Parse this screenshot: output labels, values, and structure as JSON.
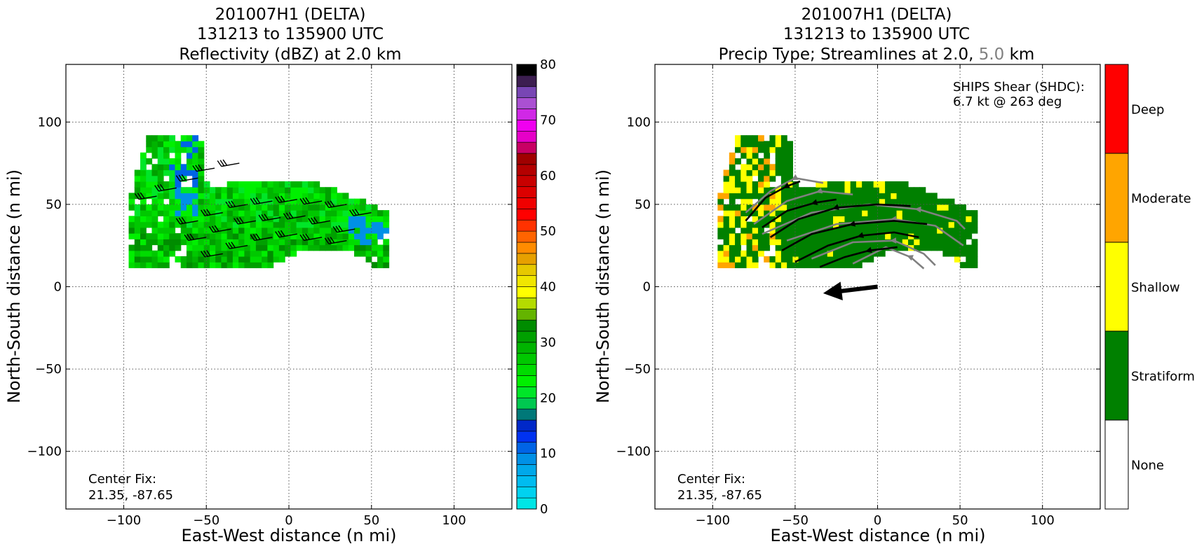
{
  "chart_data": [
    {
      "type": "heatmap",
      "title_lines": [
        "201007H1 (DELTA)",
        "131213 to 135900 UTC",
        "Reflectivity (dBZ) at 2.0 km"
      ],
      "xlabel": "East-West distance (n mi)",
      "ylabel": "North-South distance (n mi)",
      "xlim": [
        -135,
        135
      ],
      "ylim": [
        -135,
        135
      ],
      "xticks": [
        -100,
        -50,
        0,
        50,
        100
      ],
      "yticks": [
        -100,
        -50,
        0,
        50,
        100
      ],
      "xtick_labels": [
        "−100",
        "−50",
        "0",
        "50",
        "100"
      ],
      "ytick_labels": [
        "−100",
        "−50",
        "0",
        "50",
        "100"
      ],
      "grid": "dotted",
      "annotation_lines": [
        "Center Fix:",
        "21.35, -87.65"
      ],
      "colorbar": {
        "range": [
          0,
          80
        ],
        "step": 2.5,
        "ticks": [
          0,
          10,
          20,
          30,
          40,
          50,
          60,
          70,
          80
        ],
        "tick_labels": [
          "0",
          "10",
          "20",
          "30",
          "40",
          "50",
          "60",
          "70",
          "80"
        ],
        "colors": [
          "#00e6e6",
          "#00d2f0",
          "#00bcf0",
          "#00a8ea",
          "#0090e6",
          "#0064e6",
          "#0032f0",
          "#0028c8",
          "#007878",
          "#00c850",
          "#00e628",
          "#00f000",
          "#00dc00",
          "#00c800",
          "#00b400",
          "#00a000",
          "#008c00",
          "#64b400",
          "#b4dc00",
          "#ffff00",
          "#f0e600",
          "#e6c800",
          "#e6a000",
          "#ff8c00",
          "#ff6400",
          "#ff3200",
          "#ff0000",
          "#f00000",
          "#dc0000",
          "#c80000",
          "#b40000",
          "#a00000",
          "#c80064",
          "#e600c8",
          "#f000f0",
          "#d028e6",
          "#aa50d2",
          "#7846b4",
          "#3c1e50",
          "#000000"
        ]
      },
      "series": [
        {
          "name": "reflectivity_field",
          "x": [],
          "y": []
        }
      ]
    },
    {
      "type": "heatmap",
      "title_lines": [
        "201007H1 (DELTA)",
        "131213 to 135900 UTC"
      ],
      "title3_prefix": "Precip Type; Streamlines at 2.0,",
      "title3_gray": "5.0",
      "title3_suffix": "km",
      "xlabel": "East-West distance (n mi)",
      "ylabel": "North-South distance (n mi)",
      "xlim": [
        -135,
        135
      ],
      "ylim": [
        -135,
        135
      ],
      "xticks": [
        -100,
        -50,
        0,
        50,
        100
      ],
      "yticks": [
        -100,
        -50,
        0,
        50,
        100
      ],
      "xtick_labels": [
        "−100",
        "−50",
        "0",
        "50",
        "100"
      ],
      "ytick_labels": [
        "−100",
        "−50",
        "0",
        "50",
        "100"
      ],
      "grid": "dotted",
      "annotation_lines": [
        "Center Fix:",
        "21.35, -87.65"
      ],
      "shear_lines": [
        "SHIPS Shear (SHDC):",
        "6.7 kt @ 263 deg"
      ],
      "shear_vector": {
        "from": [
          0,
          0
        ],
        "to": [
          -33,
          -4
        ]
      },
      "categories": [
        {
          "label": "None",
          "color": "#ffffff"
        },
        {
          "label": "Stratiform",
          "color": "#008000"
        },
        {
          "label": "Shallow",
          "color": "#ffff00"
        },
        {
          "label": "Moderate",
          "color": "#ffa500"
        },
        {
          "label": "Deep",
          "color": "#ff0000"
        }
      ],
      "streamlines_2km": [
        [
          [
            -80,
            40
          ],
          [
            -68,
            54
          ],
          [
            -55,
            61
          ],
          [
            -47,
            64
          ]
        ],
        [
          [
            -70,
            36
          ],
          [
            -55,
            46
          ],
          [
            -38,
            51
          ],
          [
            -25,
            53
          ]
        ],
        [
          [
            -65,
            30
          ],
          [
            -48,
            41
          ],
          [
            -25,
            48
          ],
          [
            0,
            50
          ],
          [
            20,
            49
          ]
        ],
        [
          [
            -58,
            22
          ],
          [
            -40,
            32
          ],
          [
            -15,
            38
          ],
          [
            10,
            40
          ],
          [
            30,
            38
          ]
        ],
        [
          [
            -50,
            15
          ],
          [
            -30,
            25
          ],
          [
            -10,
            31
          ],
          [
            10,
            33
          ],
          [
            25,
            30
          ]
        ],
        [
          [
            -35,
            12
          ],
          [
            -20,
            18
          ],
          [
            -5,
            22
          ],
          [
            12,
            24
          ]
        ]
      ],
      "streamlines_5km": [
        [
          [
            -80,
            45
          ],
          [
            -65,
            58
          ],
          [
            -50,
            66
          ],
          [
            -33,
            63
          ]
        ],
        [
          [
            -75,
            38
          ],
          [
            -55,
            52
          ],
          [
            -35,
            58
          ],
          [
            -15,
            56
          ]
        ],
        [
          [
            -70,
            32
          ],
          [
            -40,
            45
          ],
          [
            -5,
            50
          ],
          [
            25,
            47
          ],
          [
            48,
            40
          ],
          [
            53,
            35
          ]
        ],
        [
          [
            -55,
            28
          ],
          [
            -25,
            38
          ],
          [
            10,
            41
          ],
          [
            35,
            37
          ],
          [
            52,
            25
          ]
        ],
        [
          [
            -40,
            17
          ],
          [
            -15,
            27
          ],
          [
            10,
            28
          ],
          [
            28,
            20
          ],
          [
            35,
            13
          ]
        ],
        [
          [
            -15,
            14
          ],
          [
            5,
            24
          ],
          [
            20,
            18
          ],
          [
            28,
            11
          ]
        ]
      ]
    }
  ]
}
